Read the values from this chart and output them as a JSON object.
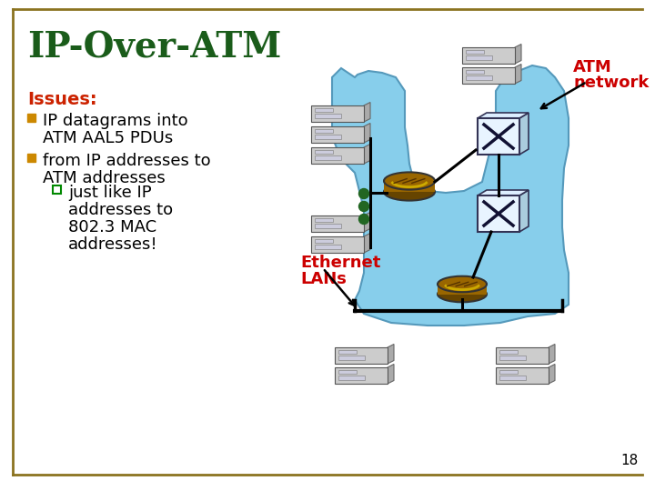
{
  "title": "IP-Over-ATM",
  "title_color": "#1A5C1A",
  "title_fontsize": 28,
  "background_color": "#FFFFFF",
  "border_color": "#8B7320",
  "issues_label": "Issues:",
  "issues_color": "#CC2200",
  "bullet1_line1": "IP datagrams into",
  "bullet1_line2": "ATM AAL5 PDUs",
  "bullet2_line1": "from IP addresses to",
  "bullet2_line2": "ATM addresses",
  "sub_bullet_line1": "just like IP",
  "sub_bullet_line2": "addresses to",
  "sub_bullet_line3": "802.3 MAC",
  "sub_bullet_line4": "addresses!",
  "bullet_color": "#CC8800",
  "sub_bullet_color": "#008800",
  "text_color": "#000000",
  "atm_label_line1": "ATM",
  "atm_label_line2": "network",
  "atm_label_color": "#CC0000",
  "ethernet_label_line1": "Ethernet",
  "ethernet_label_line2": "LANs",
  "ethernet_label_color": "#CC0000",
  "page_number": "18",
  "cloud_color": "#87CEEB",
  "router_color": "#996600",
  "router_dark": "#664400",
  "router_highlight": "#CCAA00",
  "dots_color": "#226622",
  "server_face": "#CCCCCC",
  "server_side": "#999999",
  "server_edge": "#555555",
  "switch_face": "#E8F4FF",
  "switch_side": "#AACCDD",
  "line_color": "#000000"
}
